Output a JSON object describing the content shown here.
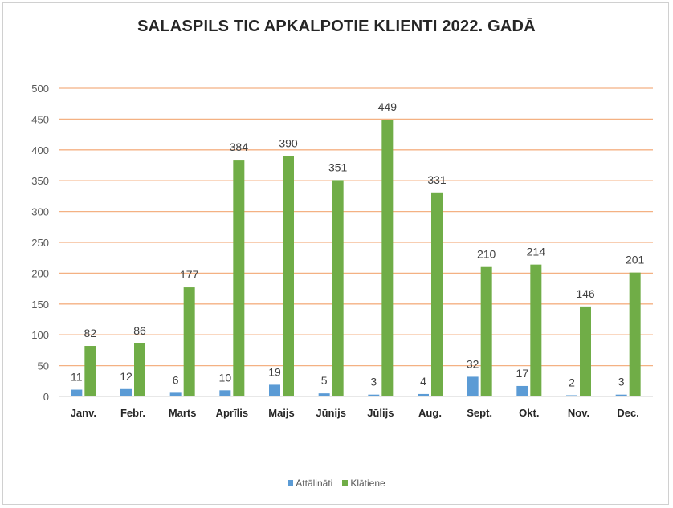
{
  "chart_data": {
    "type": "bar",
    "title": "SALASPILS TIC APKALPOTIE KLIENTI 2022. GADĀ",
    "xlabel": "",
    "ylabel": "",
    "ylim": [
      0,
      500
    ],
    "yticks": [
      0,
      50,
      100,
      150,
      200,
      250,
      300,
      350,
      400,
      450,
      500
    ],
    "grid": true,
    "legend_position": "bottom",
    "categories": [
      "Janv.",
      "Febr.",
      "Marts",
      "Aprīlis",
      "Maijs",
      "Jūnijs",
      "Jūlijs",
      "Aug.",
      "Sept.",
      "Okt.",
      "Nov.",
      "Dec."
    ],
    "series": [
      {
        "name": "Attālināti",
        "color": "#5B9BD5",
        "values": [
          11,
          12,
          6,
          10,
          19,
          5,
          3,
          4,
          32,
          17,
          2,
          3
        ]
      },
      {
        "name": "Klātiene",
        "color": "#70AD47",
        "values": [
          82,
          86,
          177,
          384,
          390,
          351,
          449,
          331,
          210,
          214,
          146,
          201
        ]
      }
    ],
    "grid_color": "#F4B183"
  }
}
